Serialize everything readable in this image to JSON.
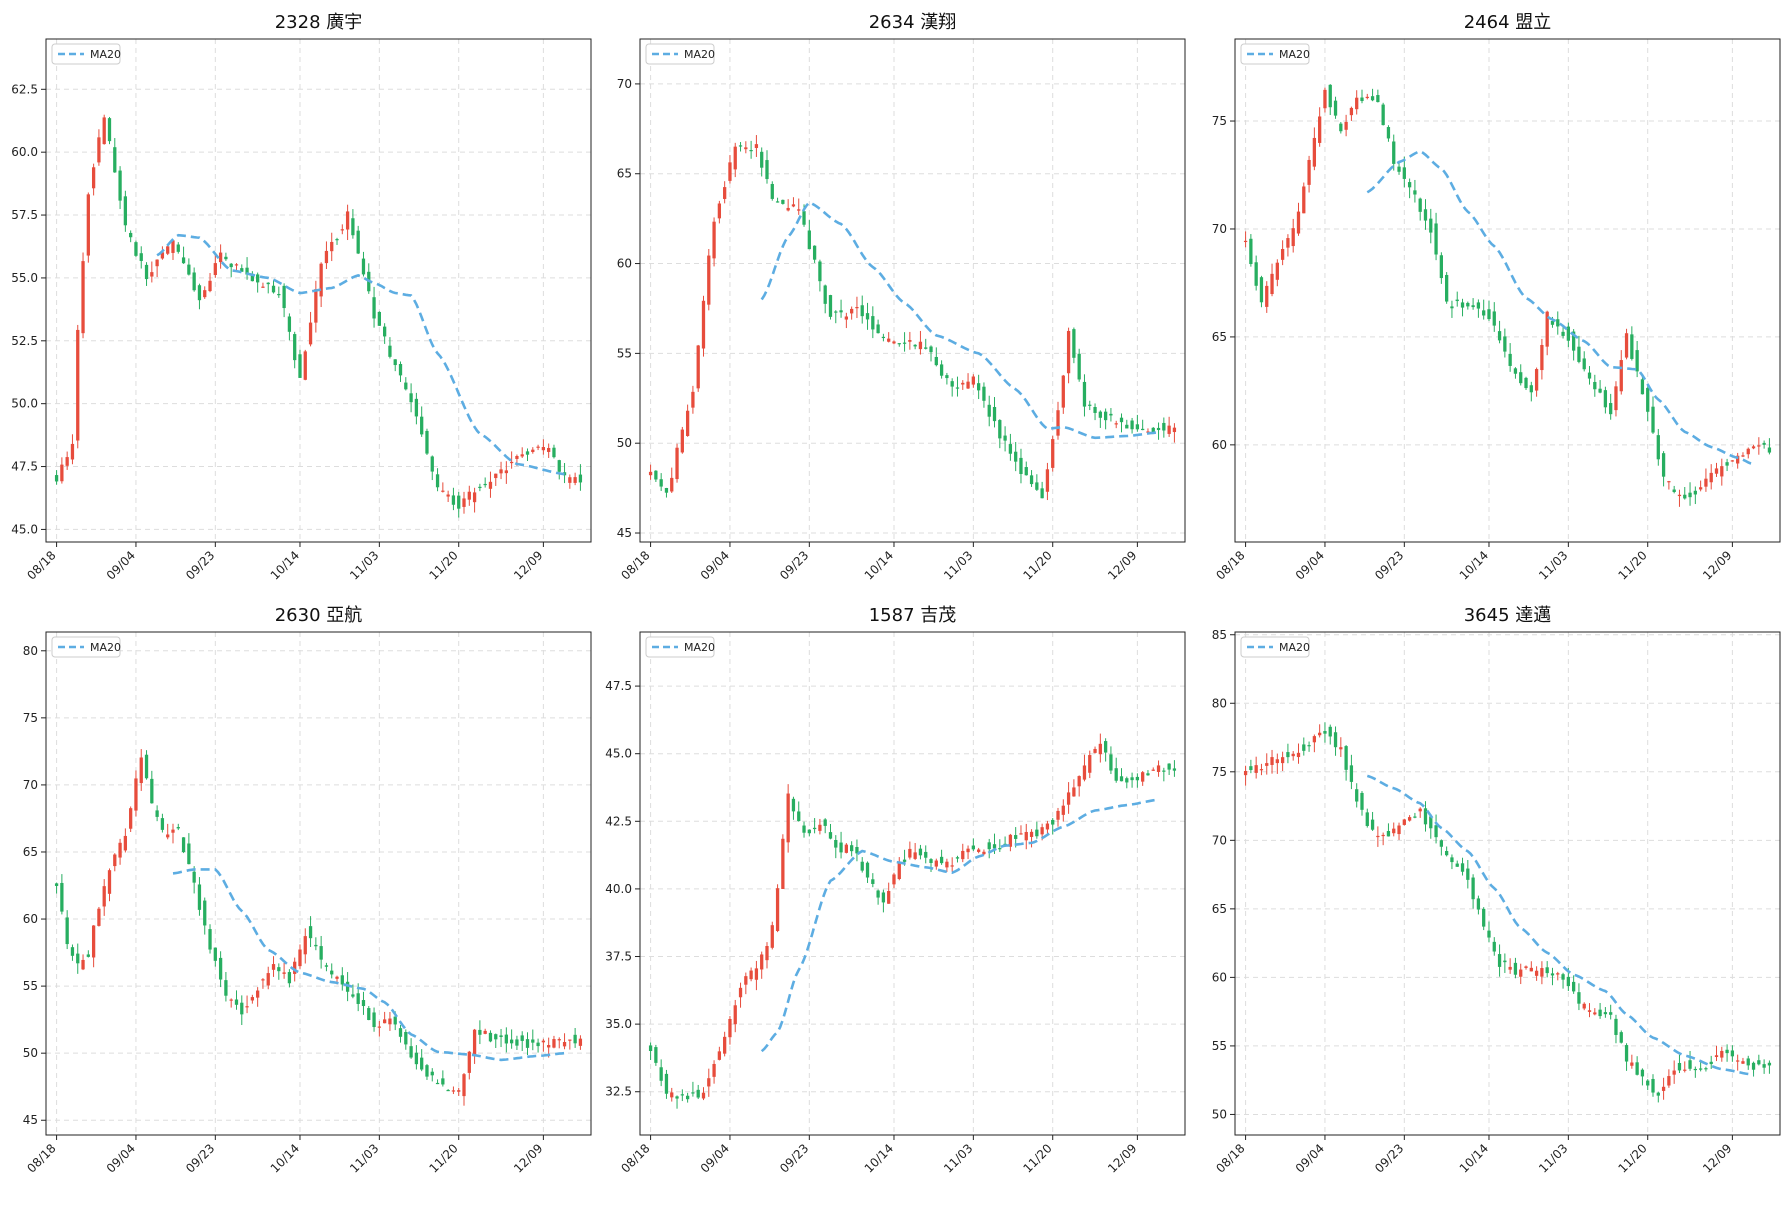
{
  "colors": {
    "up": "#e74c3c",
    "down": "#27ae60",
    "ma": "#5dade2",
    "grid": "#dddddd",
    "frame": "#222222"
  },
  "legend_label": "MA20",
  "x_ticks": [
    "08/18",
    "09/04",
    "09/23",
    "10/14",
    "11/03",
    "11/20",
    "12/09"
  ],
  "chart_data": [
    {
      "type": "candlestick",
      "title": "2328 廣宇",
      "ylim": [
        44.5,
        64.5
      ],
      "yticks": [
        "45.0",
        "47.5",
        "50.0",
        "52.5",
        "55.0",
        "57.5",
        "60.0",
        "62.5"
      ],
      "ytick_values": [
        45.0,
        47.5,
        50.0,
        52.5,
        55.0,
        57.5,
        60.0,
        62.5
      ],
      "anchors": [
        [
          0,
          47.0
        ],
        [
          3,
          48.5
        ],
        [
          4,
          53.0
        ],
        [
          6,
          58.5
        ],
        [
          9,
          61.5
        ],
        [
          13,
          57.0
        ],
        [
          17,
          55.0
        ],
        [
          22,
          56.5
        ],
        [
          27,
          54.0
        ],
        [
          31,
          56.0
        ],
        [
          36,
          55.0
        ],
        [
          42,
          54.5
        ],
        [
          46,
          51.0
        ],
        [
          50,
          55.5
        ],
        [
          55,
          57.5
        ],
        [
          60,
          53.5
        ],
        [
          64,
          51.5
        ],
        [
          68,
          49.5
        ],
        [
          72,
          46.5
        ],
        [
          76,
          46.0
        ],
        [
          82,
          47.0
        ],
        [
          88,
          48.0
        ],
        [
          93,
          48.2
        ],
        [
          96,
          47.0
        ]
      ],
      "ma_anchors": [
        [
          19,
          55.9
        ],
        [
          23,
          56.7
        ],
        [
          27,
          56.6
        ],
        [
          33,
          55.3
        ],
        [
          40,
          55.0
        ],
        [
          46,
          54.4
        ],
        [
          52,
          54.6
        ],
        [
          57,
          55.1
        ],
        [
          60,
          54.8
        ],
        [
          64,
          54.4
        ],
        [
          67,
          54.3
        ],
        [
          72,
          52.0
        ],
        [
          80,
          48.8
        ],
        [
          87,
          47.6
        ],
        [
          96,
          47.2
        ]
      ]
    },
    {
      "type": "candlestick",
      "title": "2634 漢翔",
      "ylim": [
        44.5,
        72.5
      ],
      "yticks": [
        "45",
        "50",
        "55",
        "60",
        "65",
        "70"
      ],
      "ytick_values": [
        45,
        50,
        55,
        60,
        65,
        70
      ],
      "anchors": [
        [
          0,
          48.5
        ],
        [
          3,
          47.0
        ],
        [
          5,
          49.5
        ],
        [
          8,
          53.0
        ],
        [
          10,
          58.0
        ],
        [
          12,
          62.5
        ],
        [
          14,
          64.5
        ],
        [
          16,
          66.5
        ],
        [
          20,
          66.5
        ],
        [
          23,
          63.5
        ],
        [
          28,
          63.0
        ],
        [
          31,
          60.0
        ],
        [
          34,
          57.0
        ],
        [
          39,
          57.5
        ],
        [
          42,
          56.5
        ],
        [
          46,
          55.5
        ],
        [
          52,
          55.5
        ],
        [
          57,
          53.0
        ],
        [
          61,
          53.5
        ],
        [
          66,
          50.5
        ],
        [
          70,
          48.5
        ],
        [
          74,
          47.0
        ],
        [
          77,
          52.0
        ],
        [
          79,
          56.0
        ],
        [
          82,
          52.0
        ],
        [
          86,
          51.5
        ],
        [
          90,
          51.0
        ],
        [
          96,
          50.8
        ]
      ],
      "ma_anchors": [
        [
          21,
          58.0
        ],
        [
          26,
          61.5
        ],
        [
          30,
          63.4
        ],
        [
          36,
          62.2
        ],
        [
          42,
          59.8
        ],
        [
          48,
          57.8
        ],
        [
          54,
          56.0
        ],
        [
          62,
          55.0
        ],
        [
          69,
          53.0
        ],
        [
          75,
          50.8
        ],
        [
          78,
          50.9
        ],
        [
          84,
          50.3
        ],
        [
          90,
          50.4
        ],
        [
          96,
          50.6
        ]
      ]
    },
    {
      "type": "candlestick",
      "title": "2464 盟立",
      "ylim": [
        55.5,
        78.8
      ],
      "yticks": [
        "60",
        "65",
        "70",
        "75"
      ],
      "ytick_values": [
        60,
        65,
        70,
        75
      ],
      "anchors": [
        [
          0,
          69.5
        ],
        [
          3,
          66.5
        ],
        [
          6,
          68.5
        ],
        [
          9,
          70.0
        ],
        [
          12,
          73.0
        ],
        [
          15,
          76.5
        ],
        [
          18,
          74.5
        ],
        [
          21,
          76.0
        ],
        [
          25,
          76.0
        ],
        [
          28,
          73.0
        ],
        [
          31,
          72.0
        ],
        [
          35,
          70.0
        ],
        [
          38,
          66.5
        ],
        [
          42,
          66.5
        ],
        [
          46,
          66.0
        ],
        [
          50,
          63.5
        ],
        [
          54,
          62.5
        ],
        [
          57,
          66.0
        ],
        [
          61,
          65.0
        ],
        [
          65,
          63.0
        ],
        [
          69,
          61.5
        ],
        [
          72,
          65.0
        ],
        [
          76,
          61.5
        ],
        [
          79,
          58.5
        ],
        [
          82,
          57.5
        ],
        [
          86,
          58.0
        ],
        [
          90,
          59.0
        ],
        [
          96,
          59.8
        ]
      ],
      "ma_anchors": [
        [
          23,
          71.7
        ],
        [
          29,
          73.1
        ],
        [
          33,
          73.6
        ],
        [
          37,
          72.8
        ],
        [
          42,
          70.8
        ],
        [
          47,
          69.2
        ],
        [
          53,
          66.8
        ],
        [
          58,
          65.8
        ],
        [
          64,
          64.8
        ],
        [
          69,
          63.6
        ],
        [
          74,
          63.5
        ],
        [
          78,
          62.1
        ],
        [
          83,
          60.6
        ],
        [
          88,
          59.9
        ],
        [
          93,
          59.4
        ],
        [
          96,
          59.1
        ]
      ]
    },
    {
      "type": "candlestick",
      "title": "2630 亞航",
      "ylim": [
        43.9,
        81.4
      ],
      "yticks": [
        "45",
        "50",
        "55",
        "60",
        "65",
        "70",
        "75",
        "80"
      ],
      "ytick_values": [
        45,
        50,
        55,
        60,
        65,
        70,
        75,
        80
      ],
      "anchors": [
        [
          0,
          62.5
        ],
        [
          2,
          58.0
        ],
        [
          4,
          56.5
        ],
        [
          6,
          57.5
        ],
        [
          8,
          61.0
        ],
        [
          10,
          63.5
        ],
        [
          13,
          66.5
        ],
        [
          16,
          72.0
        ],
        [
          18,
          68.5
        ],
        [
          20,
          66.5
        ],
        [
          23,
          66.5
        ],
        [
          26,
          62.5
        ],
        [
          29,
          58.0
        ],
        [
          32,
          54.0
        ],
        [
          35,
          53.0
        ],
        [
          38,
          55.0
        ],
        [
          41,
          56.5
        ],
        [
          44,
          55.5
        ],
        [
          47,
          59.0
        ],
        [
          50,
          57.0
        ],
        [
          53,
          55.5
        ],
        [
          57,
          54.0
        ],
        [
          60,
          52.0
        ],
        [
          63,
          52.5
        ],
        [
          66,
          50.5
        ],
        [
          70,
          48.5
        ],
        [
          73,
          47.5
        ],
        [
          76,
          47.0
        ],
        [
          79,
          52.0
        ],
        [
          82,
          51.0
        ],
        [
          86,
          51.0
        ],
        [
          90,
          50.5
        ],
        [
          96,
          51.0
        ]
      ],
      "ma_anchors": [
        [
          22,
          63.4
        ],
        [
          26,
          63.7
        ],
        [
          30,
          63.7
        ],
        [
          35,
          60.6
        ],
        [
          40,
          57.7
        ],
        [
          46,
          56.0
        ],
        [
          52,
          55.3
        ],
        [
          58,
          54.8
        ],
        [
          62,
          53.8
        ],
        [
          67,
          51.4
        ],
        [
          72,
          50.1
        ],
        [
          78,
          49.9
        ],
        [
          84,
          49.5
        ],
        [
          91,
          49.8
        ],
        [
          96,
          50.0
        ]
      ]
    },
    {
      "type": "candlestick",
      "title": "1587 吉茂",
      "ylim": [
        30.9,
        49.5
      ],
      "yticks": [
        "32.5",
        "35.0",
        "37.5",
        "40.0",
        "42.5",
        "45.0",
        "47.5"
      ],
      "ytick_values": [
        32.5,
        35.0,
        37.5,
        40.0,
        42.5,
        45.0,
        47.5
      ],
      "anchors": [
        [
          0,
          34.0
        ],
        [
          3,
          32.5
        ],
        [
          6,
          32.3
        ],
        [
          10,
          32.5
        ],
        [
          14,
          34.5
        ],
        [
          17,
          36.5
        ],
        [
          20,
          37.0
        ],
        [
          23,
          38.5
        ],
        [
          26,
          43.5
        ],
        [
          29,
          42.0
        ],
        [
          32,
          42.5
        ],
        [
          35,
          41.5
        ],
        [
          38,
          41.5
        ],
        [
          41,
          40.5
        ],
        [
          44,
          39.5
        ],
        [
          47,
          41.0
        ],
        [
          50,
          41.5
        ],
        [
          53,
          41.0
        ],
        [
          57,
          41.0
        ],
        [
          61,
          41.5
        ],
        [
          65,
          41.5
        ],
        [
          69,
          42.0
        ],
        [
          73,
          42.0
        ],
        [
          76,
          42.5
        ],
        [
          79,
          43.5
        ],
        [
          82,
          44.5
        ],
        [
          85,
          45.5
        ],
        [
          88,
          44.0
        ],
        [
          91,
          44.0
        ],
        [
          96,
          44.5
        ]
      ],
      "ma_anchors": [
        [
          21,
          34.0
        ],
        [
          24,
          34.7
        ],
        [
          28,
          37.0
        ],
        [
          34,
          40.3
        ],
        [
          40,
          41.4
        ],
        [
          46,
          41.0
        ],
        [
          52,
          40.8
        ],
        [
          57,
          40.6
        ],
        [
          62,
          41.2
        ],
        [
          67,
          41.6
        ],
        [
          72,
          41.7
        ],
        [
          78,
          42.3
        ],
        [
          84,
          42.9
        ],
        [
          90,
          43.1
        ],
        [
          96,
          43.3
        ]
      ]
    },
    {
      "type": "candlestick",
      "title": "3645 達邁",
      "ylim": [
        48.5,
        85.2
      ],
      "yticks": [
        "50",
        "55",
        "60",
        "65",
        "70",
        "75",
        "80",
        "85"
      ],
      "ytick_values": [
        50,
        55,
        60,
        65,
        70,
        75,
        80,
        85
      ],
      "anchors": [
        [
          0,
          75.0
        ],
        [
          3,
          75.5
        ],
        [
          6,
          76.0
        ],
        [
          9,
          76.5
        ],
        [
          12,
          77.0
        ],
        [
          15,
          78.0
        ],
        [
          18,
          76.5
        ],
        [
          21,
          73.0
        ],
        [
          24,
          70.5
        ],
        [
          27,
          70.5
        ],
        [
          30,
          71.5
        ],
        [
          33,
          72.0
        ],
        [
          36,
          70.0
        ],
        [
          39,
          68.5
        ],
        [
          42,
          67.0
        ],
        [
          45,
          63.5
        ],
        [
          48,
          61.0
        ],
        [
          51,
          60.5
        ],
        [
          54,
          60.5
        ],
        [
          57,
          60.5
        ],
        [
          60,
          60.0
        ],
        [
          63,
          58.0
        ],
        [
          66,
          57.5
        ],
        [
          69,
          57.0
        ],
        [
          72,
          54.0
        ],
        [
          75,
          52.5
        ],
        [
          78,
          51.5
        ],
        [
          81,
          53.5
        ],
        [
          84,
          53.5
        ],
        [
          87,
          53.5
        ],
        [
          90,
          54.5
        ],
        [
          93,
          54.0
        ],
        [
          96,
          53.5
        ]
      ],
      "ma_anchors": [
        [
          23,
          74.7
        ],
        [
          28,
          73.8
        ],
        [
          33,
          72.7
        ],
        [
          37,
          70.9
        ],
        [
          42,
          69.2
        ],
        [
          47,
          66.5
        ],
        [
          52,
          63.6
        ],
        [
          57,
          61.8
        ],
        [
          62,
          60.2
        ],
        [
          68,
          59.0
        ],
        [
          72,
          57.3
        ],
        [
          77,
          55.6
        ],
        [
          83,
          54.3
        ],
        [
          90,
          53.3
        ],
        [
          96,
          52.9
        ]
      ]
    }
  ]
}
